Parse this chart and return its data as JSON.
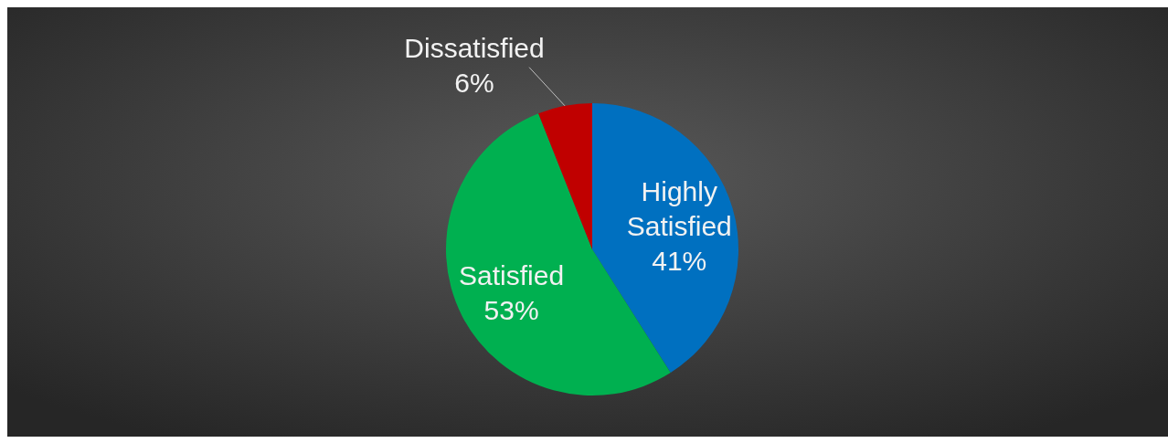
{
  "chart_data": {
    "type": "pie",
    "categories": [
      "Highly Satisfied",
      "Satisfied",
      "Dissatisfied"
    ],
    "values": [
      41,
      53,
      6
    ],
    "colors": [
      "#0070c0",
      "#00b050",
      "#c00000"
    ],
    "value_labels": [
      "41%",
      "53%",
      "6%"
    ]
  }
}
